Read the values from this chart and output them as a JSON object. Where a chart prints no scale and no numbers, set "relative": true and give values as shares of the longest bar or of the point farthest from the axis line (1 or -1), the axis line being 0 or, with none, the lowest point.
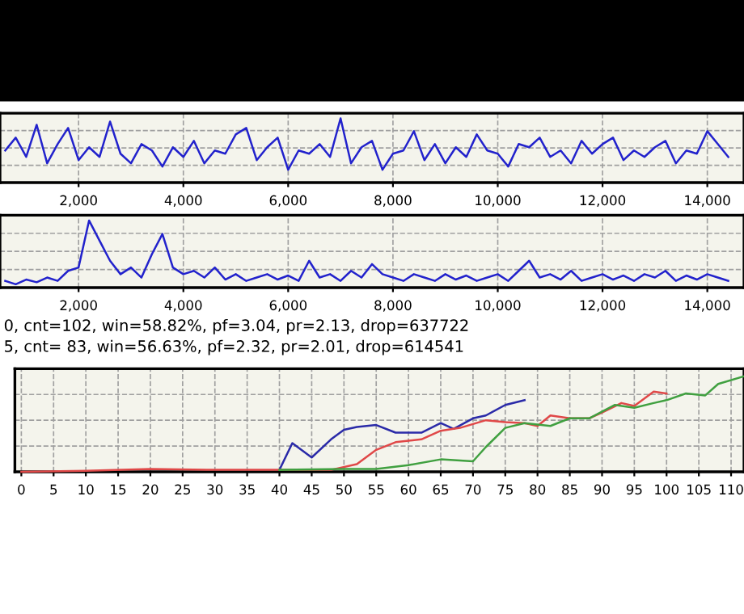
{
  "chart_data": [
    {
      "type": "line",
      "relative": true,
      "grid": true,
      "tick_labels": "x",
      "xlim": [
        500,
        14700
      ],
      "xticks": [
        {
          "value": 2000,
          "label": "2,000"
        },
        {
          "value": 4000,
          "label": "4,000"
        },
        {
          "value": 6000,
          "label": "6,000"
        },
        {
          "value": 8000,
          "label": "8,000"
        },
        {
          "value": 10000,
          "label": "10,000"
        },
        {
          "value": 12000,
          "label": "12,000"
        },
        {
          "value": 14000,
          "label": "14,000"
        }
      ],
      "x": [
        600,
        800,
        1000,
        1200,
        1400,
        1600,
        1800,
        2000,
        2200,
        2400,
        2600,
        2800,
        3000,
        3200,
        3400,
        3600,
        3800,
        4000,
        4200,
        4400,
        4600,
        4800,
        5000,
        5200,
        5400,
        5600,
        5800,
        6000,
        6200,
        6400,
        6600,
        6800,
        7000,
        7200,
        7400,
        7600,
        7800,
        8000,
        8200,
        8400,
        8600,
        8800,
        9000,
        9200,
        9400,
        9600,
        9800,
        10000,
        10200,
        10400,
        10600,
        10800,
        11000,
        11200,
        11400,
        11600,
        11800,
        12000,
        12200,
        12400,
        12600,
        12800,
        13000,
        13200,
        13400,
        13600,
        13800,
        14000,
        14200,
        14400
      ],
      "series": [
        {
          "color": "#2222cc",
          "values": [
            0.5,
            0.7,
            0.4,
            0.9,
            0.3,
            0.6,
            0.85,
            0.35,
            0.55,
            0.4,
            0.95,
            0.45,
            0.3,
            0.6,
            0.5,
            0.25,
            0.55,
            0.4,
            0.65,
            0.3,
            0.5,
            0.45,
            0.75,
            0.85,
            0.35,
            0.55,
            0.7,
            0.2,
            0.5,
            0.45,
            0.6,
            0.4,
            1.0,
            0.3,
            0.55,
            0.65,
            0.2,
            0.45,
            0.5,
            0.8,
            0.35,
            0.6,
            0.3,
            0.55,
            0.4,
            0.75,
            0.5,
            0.45,
            0.25,
            0.6,
            0.55,
            0.7,
            0.4,
            0.5,
            0.3,
            0.65,
            0.45,
            0.6,
            0.7,
            0.35,
            0.5,
            0.4,
            0.55,
            0.65,
            0.3,
            0.5,
            0.45,
            0.8,
            0.6,
            0.4
          ]
        }
      ]
    },
    {
      "type": "line",
      "relative": true,
      "grid": true,
      "tick_labels": "x",
      "xlim": [
        500,
        14700
      ],
      "xticks": [
        {
          "value": 2000,
          "label": "2,000"
        },
        {
          "value": 4000,
          "label": "4,000"
        },
        {
          "value": 6000,
          "label": "6,000"
        },
        {
          "value": 8000,
          "label": "8,000"
        },
        {
          "value": 10000,
          "label": "10,000"
        },
        {
          "value": 12000,
          "label": "12,000"
        },
        {
          "value": 14000,
          "label": "14,000"
        }
      ],
      "x": [
        600,
        800,
        1000,
        1200,
        1400,
        1600,
        1800,
        2000,
        2200,
        2400,
        2600,
        2800,
        3000,
        3200,
        3400,
        3600,
        3800,
        4000,
        4200,
        4400,
        4600,
        4800,
        5000,
        5200,
        5400,
        5600,
        5800,
        6000,
        6200,
        6400,
        6600,
        6800,
        7000,
        7200,
        7400,
        7600,
        7800,
        8000,
        8200,
        8400,
        8600,
        8800,
        9000,
        9200,
        9400,
        9600,
        9800,
        10000,
        10200,
        10400,
        10600,
        10800,
        11000,
        11200,
        11400,
        11600,
        11800,
        12000,
        12200,
        12400,
        12600,
        12800,
        13000,
        13200,
        13400,
        13600,
        13800,
        14000,
        14200,
        14400
      ],
      "series": [
        {
          "color": "#2222cc",
          "values": [
            0.1,
            0.05,
            0.12,
            0.08,
            0.15,
            0.1,
            0.25,
            0.3,
            1.0,
            0.7,
            0.4,
            0.2,
            0.3,
            0.15,
            0.5,
            0.8,
            0.3,
            0.2,
            0.25,
            0.15,
            0.3,
            0.12,
            0.2,
            0.1,
            0.15,
            0.2,
            0.12,
            0.18,
            0.1,
            0.4,
            0.15,
            0.2,
            0.1,
            0.25,
            0.15,
            0.35,
            0.2,
            0.15,
            0.1,
            0.2,
            0.15,
            0.1,
            0.2,
            0.12,
            0.18,
            0.1,
            0.15,
            0.2,
            0.1,
            0.25,
            0.4,
            0.15,
            0.2,
            0.12,
            0.25,
            0.1,
            0.15,
            0.2,
            0.12,
            0.18,
            0.1,
            0.2,
            0.15,
            0.25,
            0.1,
            0.18,
            0.12,
            0.2,
            0.15,
            0.1
          ]
        }
      ]
    },
    {
      "type": "line",
      "relative": true,
      "grid": true,
      "tick_labels": "x",
      "xlim": [
        -1,
        112
      ],
      "xticks": [
        0,
        5,
        10,
        15,
        20,
        25,
        30,
        35,
        40,
        45,
        50,
        55,
        60,
        65,
        70,
        75,
        80,
        85,
        90,
        95,
        100,
        105,
        110
      ],
      "annotations": [
        "0, cnt=102, win=58.82%, pf=3.04, pr=2.13, drop=637722",
        "5, cnt= 83, win=56.63%, pf=2.32, pr=2.01, drop=614541"
      ],
      "series": [
        {
          "color": "#2a2aa8",
          "x": [
            40,
            42,
            45,
            48,
            50,
            52,
            55,
            58,
            62,
            65,
            67,
            70,
            72,
            75,
            78
          ],
          "values": [
            0.02,
            0.3,
            0.15,
            0.34,
            0.44,
            0.47,
            0.49,
            0.41,
            0.41,
            0.51,
            0.45,
            0.56,
            0.59,
            0.7,
            0.75
          ]
        },
        {
          "color": "#e04848",
          "x": [
            0,
            10,
            20,
            30,
            40,
            45,
            48,
            52,
            55,
            58,
            62,
            65,
            68,
            72,
            75,
            78,
            80,
            82,
            85,
            88,
            90,
            93,
            95,
            98,
            100
          ],
          "values": [
            0,
            0.01,
            0.03,
            0.02,
            0.02,
            0.02,
            0.02,
            0.08,
            0.23,
            0.31,
            0.34,
            0.43,
            0.46,
            0.54,
            0.52,
            0.51,
            0.48,
            0.59,
            0.56,
            0.56,
            0.62,
            0.72,
            0.69,
            0.84,
            0.82
          ]
        },
        {
          "color": "#40a040",
          "x": [
            40,
            50,
            55,
            60,
            65,
            70,
            72,
            75,
            78,
            82,
            85,
            88,
            92,
            95,
            98,
            100,
            103,
            106,
            108,
            112
          ],
          "values": [
            0.02,
            0.03,
            0.03,
            0.07,
            0.13,
            0.11,
            0.26,
            0.46,
            0.51,
            0.48,
            0.56,
            0.56,
            0.7,
            0.67,
            0.72,
            0.75,
            0.82,
            0.8,
            0.92,
            1.0
          ]
        }
      ]
    }
  ]
}
